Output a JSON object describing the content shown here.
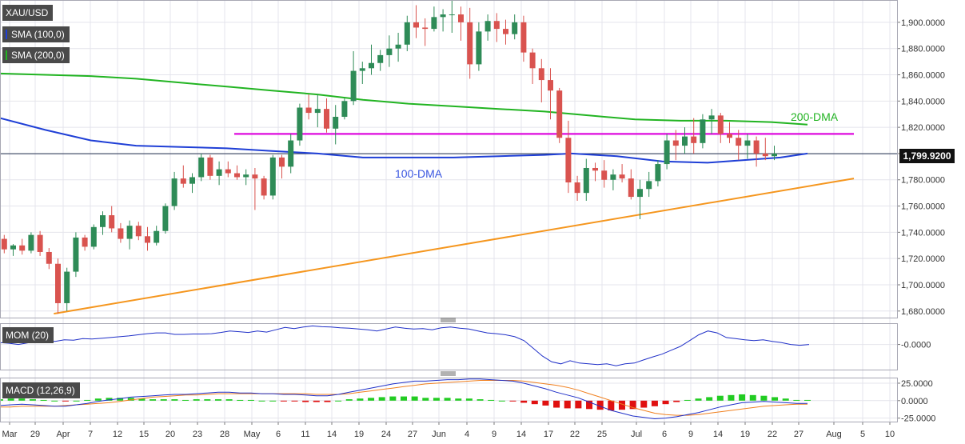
{
  "symbol": "XAU/USD",
  "indicator_badges": {
    "sma100": "SMA (100,0)",
    "sma200": "SMA (200,0)",
    "mom": "MOM (20)",
    "macd": "MACD (12,26,9)"
  },
  "last_price_label": "1,799.9200",
  "colors": {
    "up_candle": "#2e8b57",
    "down_candle": "#d9534f",
    "sma100": "#1f3fd6",
    "sma200": "#22b422",
    "horizontal_level": "#e020e0",
    "trendline": "#f5961e",
    "mom_line": "#2030c8",
    "macd_line": "#2030c8",
    "signal_line": "#f08020",
    "hist_positive": "#22cc22",
    "hist_negative": "#e01010",
    "grid": "#e4e4ec",
    "price_line": "#1c2a4a"
  },
  "annotations": {
    "dma200": "200-DMA",
    "dma100": "100-DMA"
  },
  "chart_data": [
    {
      "type": "candlestick",
      "title": "XAU/USD",
      "timeframe": "daily",
      "yaxis_ticks": [
        "1,900.0000",
        "1,880.0000",
        "1,860.0000",
        "1,840.0000",
        "1,820.0000",
        "1,800.0000",
        "1,780.0000",
        "1,760.0000",
        "1,740.0000",
        "1,720.0000",
        "1,700.0000",
        "1,680.0000"
      ],
      "xaxis_ticks": [
        "Mar",
        "29",
        "Apr",
        "7",
        "12",
        "15",
        "20",
        "23",
        "28",
        "May",
        "6",
        "11",
        "14",
        "19",
        "24",
        "27",
        "Jun",
        "4",
        "9",
        "14",
        "17",
        "22",
        "25",
        "Jul",
        "6",
        "9",
        "14",
        "19",
        "22",
        "27",
        "Aug",
        "5",
        "10"
      ],
      "ylim": [
        1675,
        1917
      ],
      "last_price": 1799.92,
      "horizontal_level": 1815,
      "trendline": [
        [
          0,
          1678
        ],
        [
          73,
          1781
        ]
      ],
      "candles": [
        [
          1735,
          1738,
          1724,
          1727
        ],
        [
          1727,
          1731,
          1722,
          1730
        ],
        [
          1730,
          1735,
          1723,
          1726
        ],
        [
          1726,
          1740,
          1724,
          1738
        ],
        [
          1738,
          1741,
          1722,
          1725
        ],
        [
          1725,
          1728,
          1712,
          1716
        ],
        [
          1716,
          1720,
          1678,
          1686
        ],
        [
          1686,
          1713,
          1680,
          1710
        ],
        [
          1710,
          1740,
          1706,
          1736
        ],
        [
          1736,
          1738,
          1726,
          1729
        ],
        [
          1729,
          1746,
          1727,
          1744
        ],
        [
          1744,
          1756,
          1738,
          1753
        ],
        [
          1753,
          1760,
          1740,
          1743
        ],
        [
          1743,
          1747,
          1732,
          1735
        ],
        [
          1735,
          1749,
          1727,
          1745
        ],
        [
          1745,
          1748,
          1734,
          1737
        ],
        [
          1737,
          1744,
          1726,
          1732
        ],
        [
          1732,
          1745,
          1730,
          1741
        ],
        [
          1741,
          1762,
          1739,
          1760
        ],
        [
          1760,
          1786,
          1757,
          1781
        ],
        [
          1781,
          1791,
          1774,
          1777
        ],
        [
          1777,
          1785,
          1770,
          1782
        ],
        [
          1782,
          1800,
          1779,
          1797
        ],
        [
          1797,
          1799,
          1780,
          1783
        ],
        [
          1783,
          1794,
          1776,
          1788
        ],
        [
          1788,
          1794,
          1782,
          1785
        ],
        [
          1785,
          1791,
          1780,
          1782
        ],
        [
          1782,
          1788,
          1776,
          1784
        ],
        [
          1784,
          1789,
          1757,
          1781
        ],
        [
          1781,
          1783,
          1765,
          1768
        ],
        [
          1768,
          1799,
          1765,
          1797
        ],
        [
          1797,
          1799,
          1781,
          1790
        ],
        [
          1790,
          1815,
          1785,
          1810
        ],
        [
          1810,
          1838,
          1806,
          1835
        ],
        [
          1835,
          1845,
          1826,
          1831
        ],
        [
          1831,
          1845,
          1820,
          1834
        ],
        [
          1834,
          1842,
          1816,
          1819
        ],
        [
          1819,
          1837,
          1807,
          1828
        ],
        [
          1828,
          1842,
          1826,
          1840
        ],
        [
          1840,
          1878,
          1837,
          1863
        ],
        [
          1863,
          1870,
          1853,
          1865
        ],
        [
          1865,
          1883,
          1860,
          1869
        ],
        [
          1869,
          1879,
          1863,
          1875
        ],
        [
          1875,
          1890,
          1866,
          1880
        ],
        [
          1880,
          1892,
          1870,
          1883
        ],
        [
          1883,
          1905,
          1878,
          1900
        ],
        [
          1900,
          1913,
          1888,
          1896
        ],
        [
          1896,
          1903,
          1882,
          1895
        ],
        [
          1895,
          1912,
          1893,
          1904
        ],
        [
          1904,
          1910,
          1893,
          1906
        ],
        [
          1906,
          1917,
          1892,
          1906
        ],
        [
          1906,
          1912,
          1886,
          1900
        ],
        [
          1900,
          1911,
          1857,
          1868
        ],
        [
          1868,
          1900,
          1863,
          1893
        ],
        [
          1893,
          1906,
          1886,
          1901
        ],
        [
          1901,
          1907,
          1885,
          1895
        ],
        [
          1895,
          1902,
          1883,
          1891
        ],
        [
          1891,
          1906,
          1887,
          1900
        ],
        [
          1900,
          1905,
          1870,
          1877
        ],
        [
          1877,
          1880,
          1853,
          1865
        ],
        [
          1865,
          1872,
          1839,
          1856
        ],
        [
          1856,
          1865,
          1826,
          1848
        ],
        [
          1848,
          1850,
          1808,
          1812
        ],
        [
          1812,
          1825,
          1770,
          1778
        ],
        [
          1778,
          1783,
          1764,
          1770
        ],
        [
          1770,
          1796,
          1764,
          1789
        ],
        [
          1789,
          1793,
          1779,
          1787
        ],
        [
          1787,
          1795,
          1774,
          1780
        ],
        [
          1780,
          1788,
          1772,
          1784
        ],
        [
          1784,
          1792,
          1778,
          1781
        ],
        [
          1781,
          1788,
          1765,
          1767
        ],
        [
          1767,
          1780,
          1750,
          1773
        ],
        [
          1773,
          1786,
          1767,
          1779
        ],
        [
          1779,
          1795,
          1775,
          1792
        ],
        [
          1792,
          1815,
          1788,
          1810
        ],
        [
          1810,
          1818,
          1795,
          1806
        ],
        [
          1806,
          1820,
          1800,
          1813
        ],
        [
          1813,
          1827,
          1800,
          1808
        ],
        [
          1808,
          1830,
          1804,
          1826
        ],
        [
          1826,
          1834,
          1815,
          1829
        ],
        [
          1829,
          1831,
          1808,
          1815
        ],
        [
          1815,
          1824,
          1808,
          1812
        ],
        [
          1812,
          1818,
          1795,
          1806
        ],
        [
          1806,
          1815,
          1796,
          1810
        ],
        [
          1810,
          1813,
          1790,
          1800
        ],
        [
          1800,
          1812,
          1795,
          1798
        ],
        [
          1798,
          1806,
          1795,
          1800
        ]
      ],
      "sma100": [
        [
          0,
          1827
        ],
        [
          5,
          1818
        ],
        [
          10,
          1810
        ],
        [
          15,
          1806
        ],
        [
          20,
          1805
        ],
        [
          25,
          1804
        ],
        [
          30,
          1802
        ],
        [
          35,
          1800
        ],
        [
          40,
          1797
        ],
        [
          45,
          1797
        ],
        [
          50,
          1797
        ],
        [
          55,
          1798
        ],
        [
          60,
          1799
        ],
        [
          63,
          1800
        ],
        [
          68,
          1798
        ],
        [
          73,
          1794
        ],
        [
          78,
          1793
        ],
        [
          82,
          1795
        ],
        [
          86,
          1797
        ],
        [
          89,
          1800
        ]
      ],
      "sma200": [
        [
          0,
          1861
        ],
        [
          5,
          1860
        ],
        [
          10,
          1859
        ],
        [
          15,
          1857
        ],
        [
          20,
          1854
        ],
        [
          25,
          1851
        ],
        [
          30,
          1848
        ],
        [
          35,
          1845
        ],
        [
          40,
          1841
        ],
        [
          45,
          1838
        ],
        [
          50,
          1836
        ],
        [
          55,
          1834
        ],
        [
          60,
          1832
        ],
        [
          65,
          1829
        ],
        [
          70,
          1826
        ],
        [
          75,
          1825
        ],
        [
          80,
          1825
        ],
        [
          85,
          1824
        ],
        [
          89,
          1822
        ]
      ]
    },
    {
      "type": "line",
      "title": "MOM (20)",
      "yaxis_ticks": [
        "-0.0000"
      ],
      "ylim": [
        -65,
        55
      ],
      "values": [
        5,
        3,
        0,
        4,
        8,
        10,
        8,
        12,
        11,
        15,
        14,
        16,
        18,
        20,
        22,
        25,
        28,
        30,
        30,
        26,
        26,
        27,
        27,
        28,
        31,
        35,
        33,
        31,
        35,
        32,
        38,
        44,
        41,
        45,
        48,
        46,
        45,
        43,
        42,
        40,
        38,
        35,
        40,
        45,
        42,
        40,
        41,
        38,
        43,
        45,
        42,
        40,
        35,
        30,
        28,
        25,
        20,
        10,
        -10,
        -30,
        -45,
        -50,
        -42,
        -48,
        -50,
        -52,
        -50,
        -55,
        -50,
        -48,
        -40,
        -32,
        -25,
        -15,
        -5,
        10,
        25,
        35,
        30,
        18,
        15,
        12,
        10,
        12,
        8,
        5,
        0,
        -2,
        0
      ]
    },
    {
      "type": "macd",
      "title": "MACD (12,26,9)",
      "yaxis_ticks": [
        "25.0000",
        "0.0000",
        "-25.0000"
      ],
      "ylim": [
        -30,
        33
      ],
      "macd": [
        -7,
        -6,
        -5,
        -6,
        -7,
        -8,
        -8,
        -6,
        -4,
        -1,
        1,
        3,
        5,
        6,
        7,
        8,
        9,
        9,
        10,
        11,
        12,
        12,
        11,
        11,
        10,
        10,
        9,
        9,
        8,
        7,
        7,
        9,
        12,
        15,
        18,
        21,
        24,
        26,
        28,
        28,
        29,
        30,
        30,
        31,
        31,
        30,
        29,
        28,
        25,
        21,
        17,
        12,
        8,
        4,
        -2,
        -8,
        -14,
        -18,
        -22,
        -24,
        -26,
        -25,
        -23,
        -20,
        -17,
        -13,
        -9,
        -6,
        -3,
        -2,
        -1,
        -2,
        -3,
        -4,
        -4
      ],
      "signal": [
        -9,
        -9,
        -8,
        -8,
        -8,
        -8,
        -7,
        -6,
        -5,
        -4,
        -3,
        -1,
        1,
        3,
        5,
        6,
        7,
        8,
        8,
        9,
        10,
        10,
        10,
        10,
        10,
        10,
        10,
        10,
        10,
        9,
        9,
        9,
        10,
        12,
        14,
        16,
        18,
        20,
        22,
        24,
        25,
        26,
        27,
        28,
        29,
        29,
        29,
        29,
        28,
        26,
        24,
        22,
        19,
        15,
        10,
        5,
        0,
        -5,
        -10,
        -14,
        -18,
        -20,
        -21,
        -21,
        -20,
        -18,
        -16,
        -14,
        -12,
        -10,
        -8,
        -7,
        -6,
        -5,
        -5
      ],
      "histogram": [
        2,
        3,
        3,
        2,
        1,
        0,
        -1,
        0,
        1,
        3,
        4,
        4,
        4,
        3,
        2,
        2,
        2,
        1,
        2,
        2,
        2,
        2,
        1,
        1,
        0,
        0,
        -1,
        -1,
        -2,
        -2,
        -2,
        0,
        2,
        3,
        4,
        5,
        6,
        6,
        6,
        4,
        4,
        4,
        3,
        3,
        2,
        1,
        0,
        -1,
        -3,
        -5,
        -7,
        -10,
        -11,
        -11,
        -12,
        -13,
        -14,
        -13,
        -12,
        -10,
        -8,
        -5,
        -2,
        1,
        3,
        5,
        7,
        8,
        9,
        8,
        7,
        5,
        3,
        1,
        1
      ]
    }
  ]
}
